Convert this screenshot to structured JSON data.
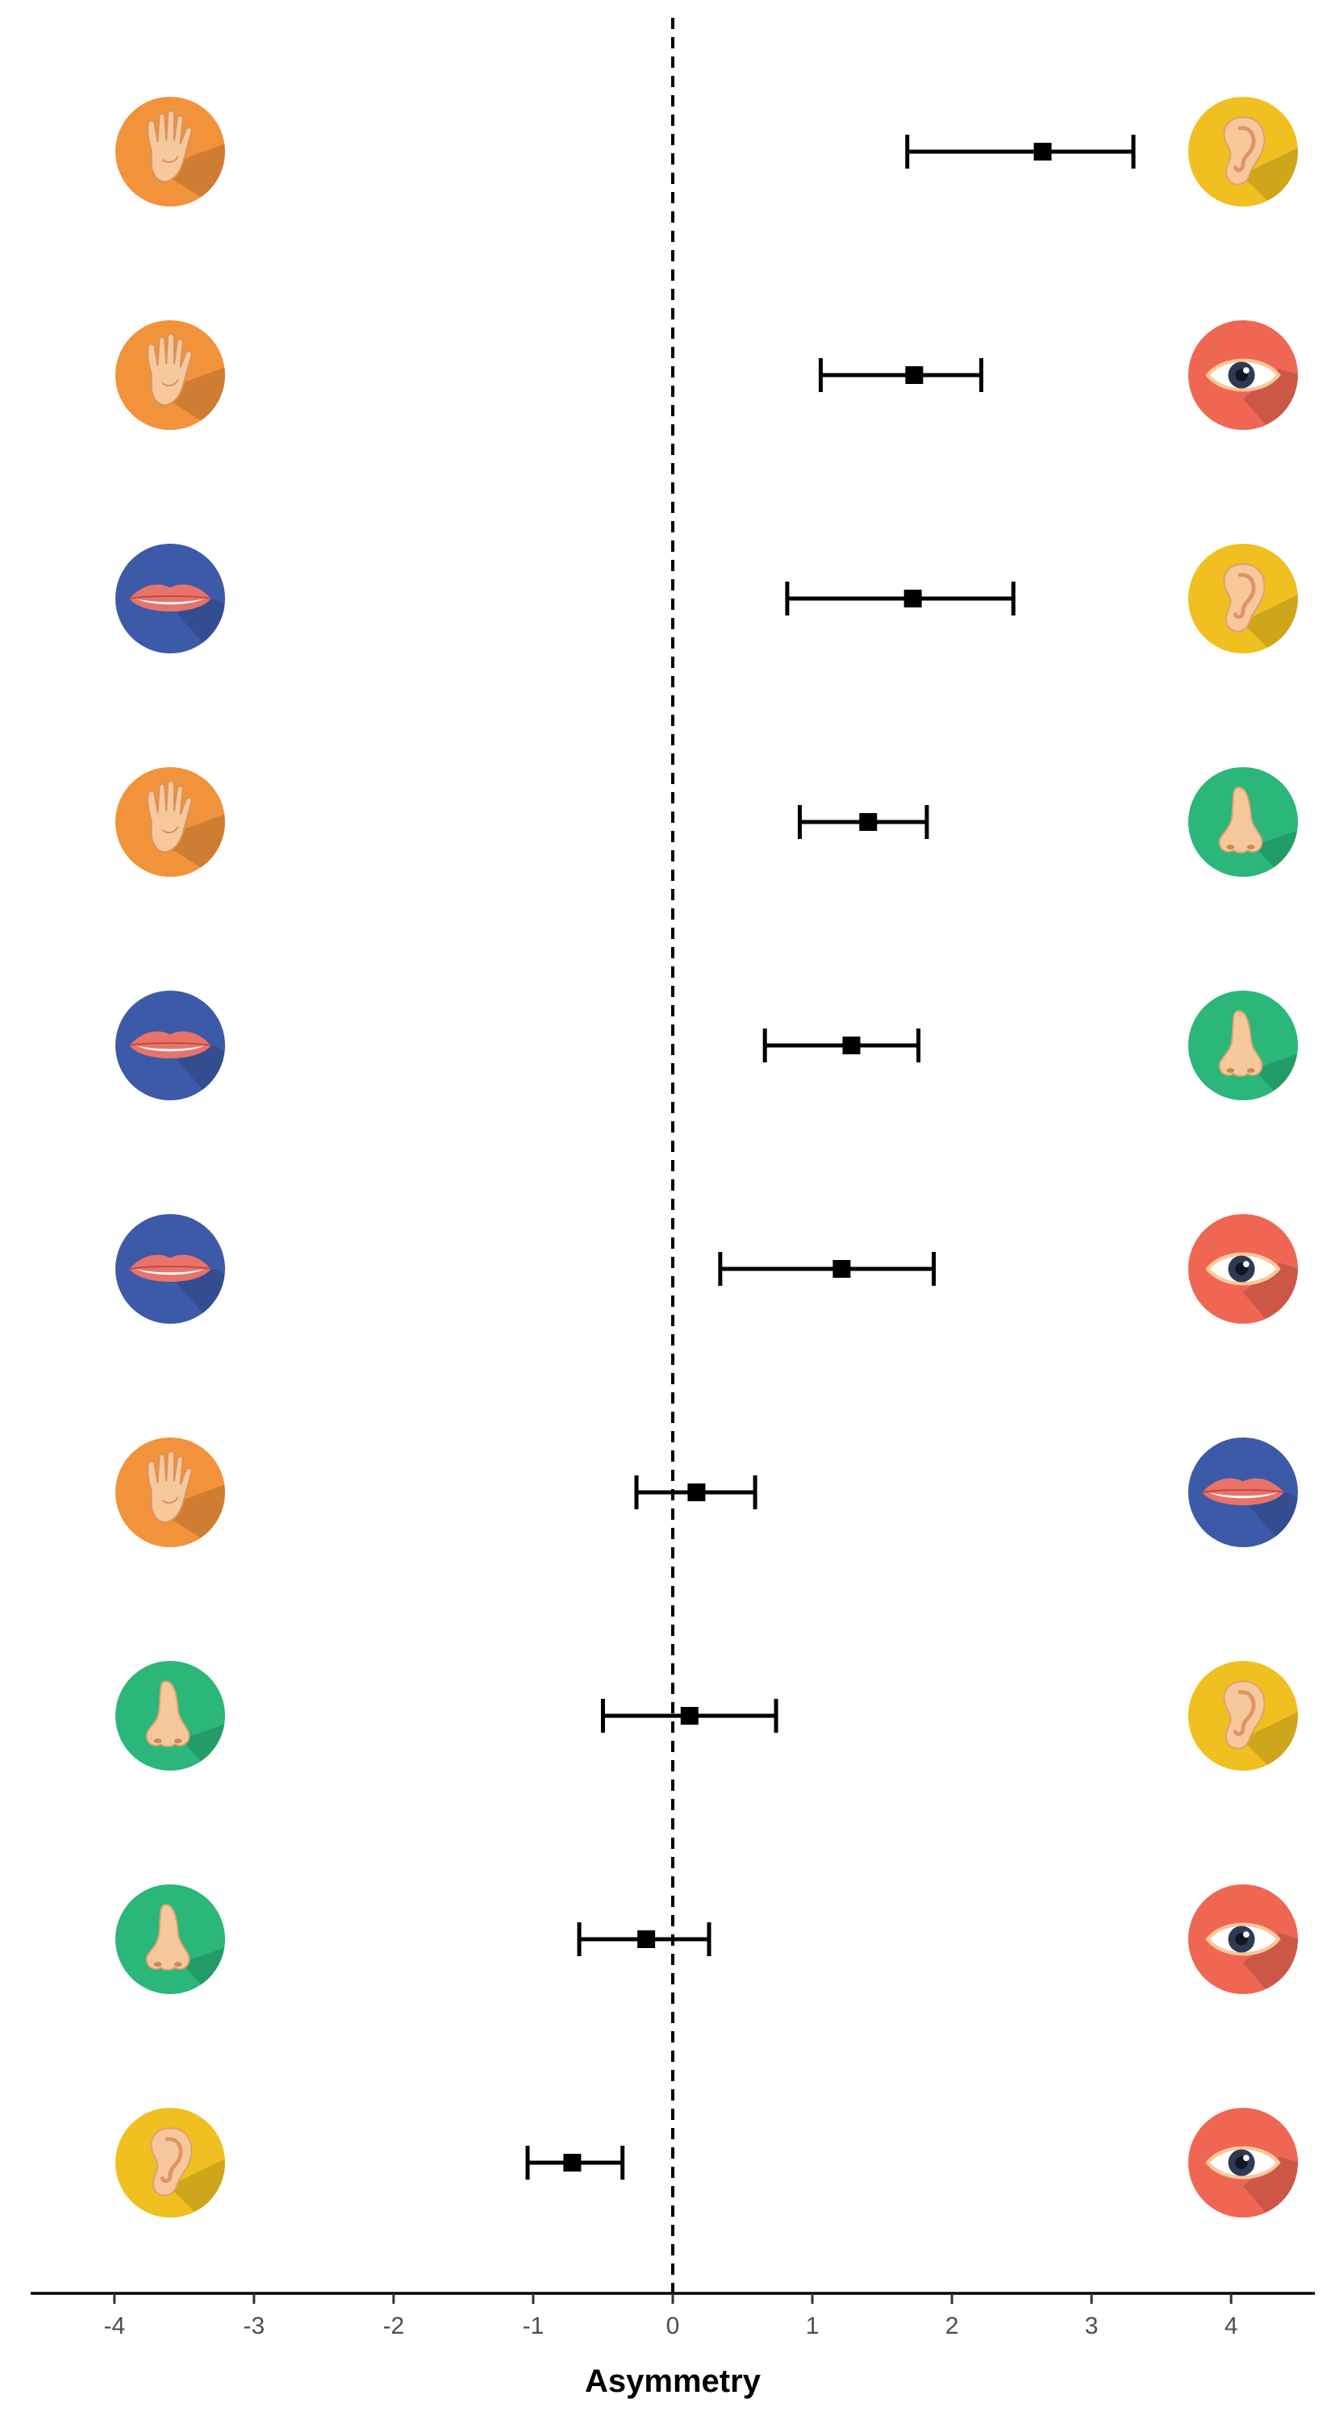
{
  "chart_data": {
    "type": "scatter",
    "subtype": "forest-plot",
    "title": "",
    "xlabel": "Asymmetry",
    "ylabel": "",
    "xlim": [
      -4.6,
      4.6
    ],
    "xticks": [
      -4,
      -3,
      -2,
      -1,
      0,
      1,
      2,
      3,
      4
    ],
    "reference_line": {
      "x": 0,
      "style": "dashed"
    },
    "grid": false,
    "legend": "none",
    "rows": [
      {
        "left": "touch",
        "right": "hearing",
        "estimate": 2.65,
        "ci": [
          1.68,
          3.3
        ]
      },
      {
        "left": "touch",
        "right": "sight",
        "estimate": 1.73,
        "ci": [
          1.06,
          2.21
        ]
      },
      {
        "left": "taste",
        "right": "hearing",
        "estimate": 1.72,
        "ci": [
          0.82,
          2.44
        ]
      },
      {
        "left": "touch",
        "right": "smell",
        "estimate": 1.4,
        "ci": [
          0.91,
          1.82
        ]
      },
      {
        "left": "taste",
        "right": "smell",
        "estimate": 1.28,
        "ci": [
          0.66,
          1.76
        ]
      },
      {
        "left": "taste",
        "right": "sight",
        "estimate": 1.21,
        "ci": [
          0.34,
          1.87
        ]
      },
      {
        "left": "touch",
        "right": "taste",
        "estimate": 0.17,
        "ci": [
          -0.26,
          0.59
        ]
      },
      {
        "left": "smell",
        "right": "hearing",
        "estimate": 0.12,
        "ci": [
          -0.5,
          0.74
        ]
      },
      {
        "left": "smell",
        "right": "sight",
        "estimate": -0.19,
        "ci": [
          -0.67,
          0.26
        ]
      },
      {
        "left": "hearing",
        "right": "sight",
        "estimate": -0.72,
        "ci": [
          -1.04,
          -0.36
        ]
      }
    ]
  },
  "icons": {
    "touch": {
      "name": "hand-icon",
      "color": "#f2923b"
    },
    "hearing": {
      "name": "ear-icon",
      "color": "#f0c020"
    },
    "sight": {
      "name": "eye-icon",
      "color": "#ef6653"
    },
    "taste": {
      "name": "lips-icon",
      "color": "#3d5aa8"
    },
    "smell": {
      "name": "nose-icon",
      "color": "#2bb67a"
    }
  }
}
